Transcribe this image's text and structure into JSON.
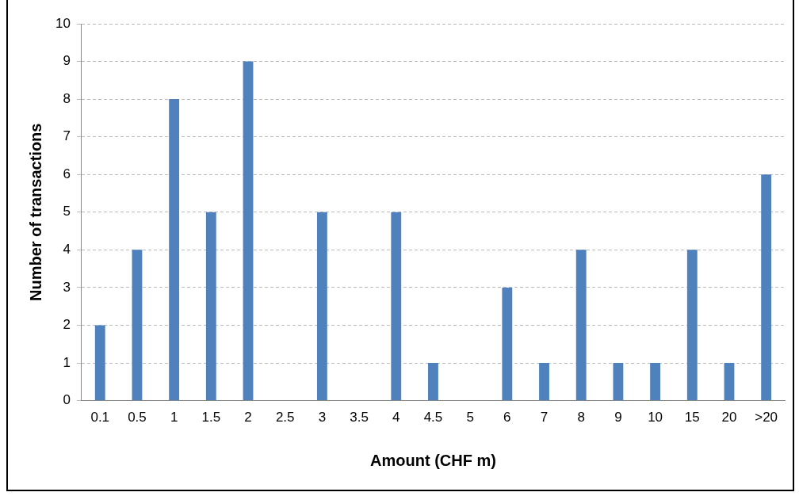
{
  "chart_data": {
    "type": "bar",
    "xlabel": "Amount (CHF m)",
    "ylabel": "Number of transactions",
    "categories": [
      "0.1",
      "0.5",
      "1",
      "1.5",
      "2",
      "2.5",
      "3",
      "3.5",
      "4",
      "4.5",
      "5",
      "6",
      "7",
      "8",
      "9",
      "10",
      "15",
      "20",
      ">20"
    ],
    "values": [
      2,
      4,
      8,
      5,
      9,
      0,
      5,
      0,
      5,
      1,
      0,
      3,
      1,
      4,
      1,
      1,
      4,
      1,
      6
    ],
    "color": "#4f81bd",
    "ylim": [
      0,
      10
    ],
    "yticks": [
      0,
      1,
      2,
      3,
      4,
      5,
      6,
      7,
      8,
      9,
      10
    ],
    "grid": "y",
    "legend": false
  }
}
